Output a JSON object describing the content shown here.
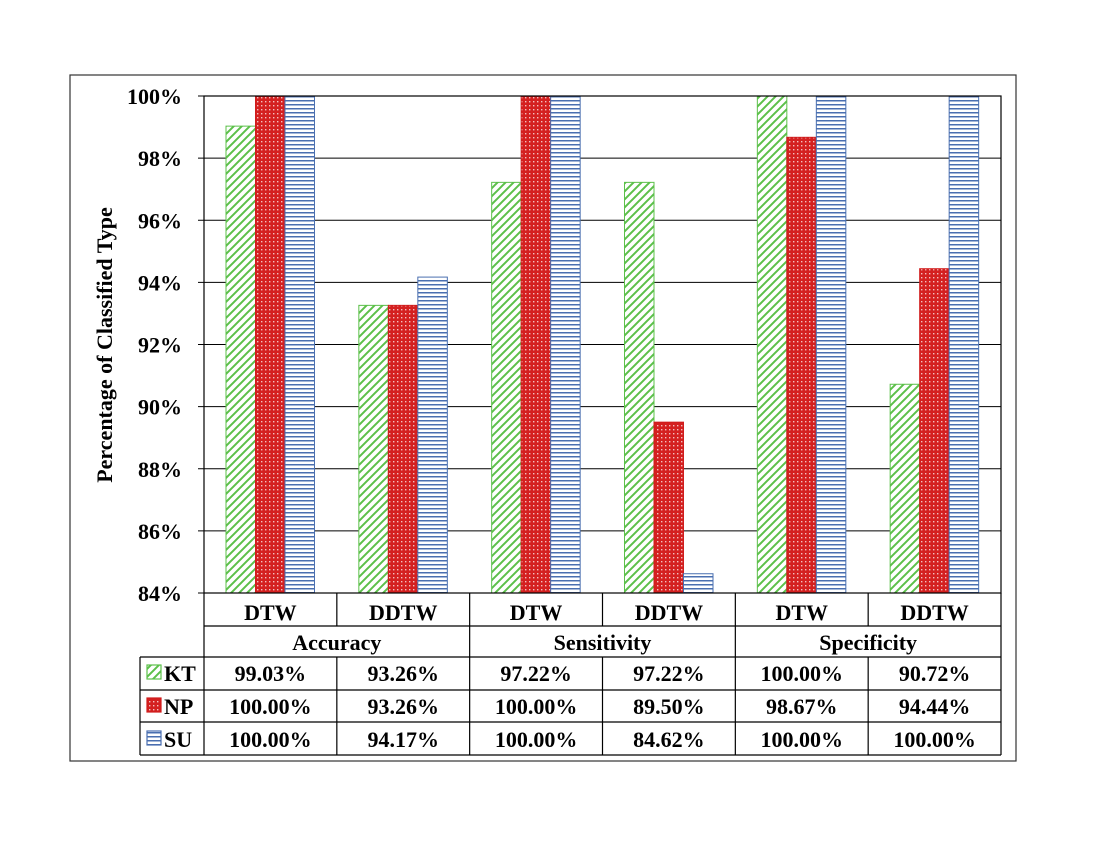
{
  "chart_data": {
    "type": "bar",
    "ylabel": "Percentage of Classified Type",
    "ylim": [
      84,
      100
    ],
    "yticks": [
      84,
      86,
      88,
      90,
      92,
      94,
      96,
      98,
      100
    ],
    "ytick_labels": [
      "84%",
      "86%",
      "88%",
      "90%",
      "92%",
      "94%",
      "96%",
      "98%",
      "100%"
    ],
    "grid": true,
    "groups": [
      {
        "name": "Accuracy",
        "categories": [
          "DTW",
          "DDTW"
        ]
      },
      {
        "name": "Sensitivity",
        "categories": [
          "DTW",
          "DDTW"
        ]
      },
      {
        "name": "Specificity",
        "categories": [
          "DTW",
          "DDTW"
        ]
      }
    ],
    "categories": [
      "DTW",
      "DDTW",
      "DTW",
      "DDTW",
      "DTW",
      "DDTW"
    ],
    "series": [
      {
        "name": "KT",
        "color": "#5cc04a",
        "pattern": "diagonal-hatch",
        "values": [
          99.03,
          93.26,
          97.22,
          97.22,
          100.0,
          90.72
        ],
        "labels": [
          "99.03%",
          "93.26%",
          "97.22%",
          "97.22%",
          "100.00%",
          "90.72%"
        ]
      },
      {
        "name": "NP",
        "color": "#d01c1c",
        "pattern": "dots",
        "values": [
          100.0,
          93.26,
          100.0,
          89.5,
          98.67,
          94.44
        ],
        "labels": [
          "100.00%",
          "93.26%",
          "100.00%",
          "89.50%",
          "98.67%",
          "94.44%"
        ]
      },
      {
        "name": "SU",
        "color": "#4a6fb0",
        "pattern": "horizontal-lines",
        "values": [
          100.0,
          94.17,
          100.0,
          84.62,
          100.0,
          100.0
        ],
        "labels": [
          "100.00%",
          "94.17%",
          "100.00%",
          "84.62%",
          "100.00%",
          "100.00%"
        ]
      }
    ],
    "legend": "data-table"
  }
}
